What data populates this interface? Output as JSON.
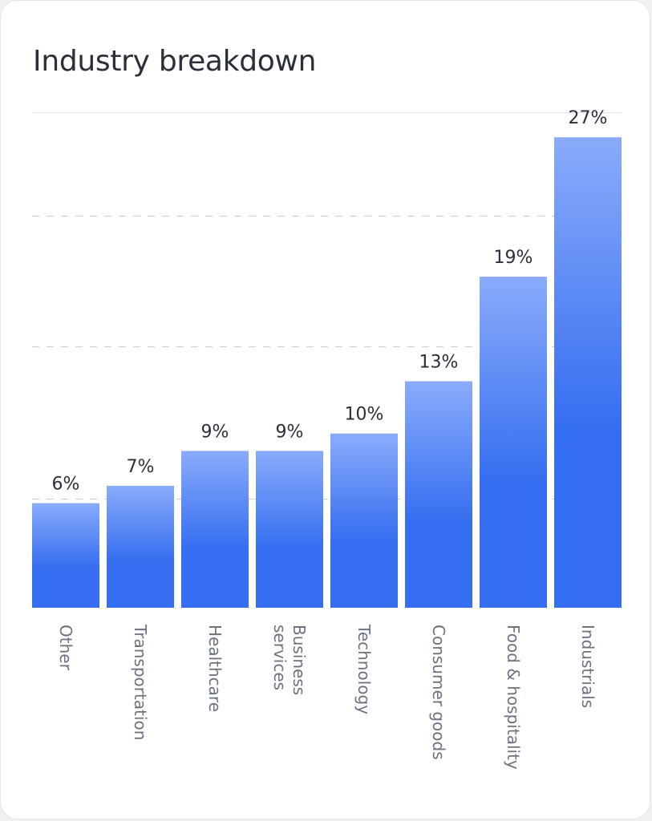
{
  "card": {
    "title": "Industry breakdown"
  },
  "chart_data": {
    "type": "bar",
    "title": "Industry breakdown",
    "categories": [
      [
        "Other"
      ],
      [
        "Transportation"
      ],
      [
        "Healthcare"
      ],
      [
        "Business",
        "services"
      ],
      [
        "Technology"
      ],
      [
        "Consumer goods"
      ],
      [
        "Food & hospitality"
      ],
      [
        "Industrials"
      ]
    ],
    "values": [
      6,
      7,
      9,
      9,
      10,
      13,
      19,
      27
    ],
    "value_labels": [
      "6%",
      "7%",
      "9%",
      "9%",
      "10%",
      "13%",
      "19%",
      "27%"
    ],
    "ylim": [
      0,
      30
    ],
    "grid": true,
    "bar_color_top": "#8aabfb",
    "bar_color_bottom": "#356ef0",
    "xlabel": "",
    "ylabel": ""
  }
}
